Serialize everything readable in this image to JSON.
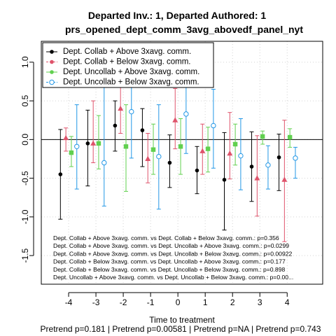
{
  "chart_data": {
    "type": "scatter",
    "title": "Departed Inv.: 1, Departed Authored: 1",
    "subtitle": "prs_opened_dept_comm_3avg_abovedf_panel_nyt",
    "xlabel": "Time to treatment",
    "xlabel2": "Pretrend p=0.181 | Pretrend p=0.00581 | Pretrend p=NA | Pretrend p=0.743",
    "ylabel": "",
    "xlim": [
      -5.0,
      5.3
    ],
    "ylim": [
      -1.87,
      1.27
    ],
    "x_ticks": [
      -4,
      -3,
      -2,
      -1,
      0,
      1,
      2,
      3,
      4
    ],
    "y_ticks": [
      -1.5,
      -1.0,
      -0.5,
      0.0,
      0.5,
      1.0
    ],
    "grid": true,
    "zero_line": 0,
    "legend_position": "top-left",
    "series": [
      {
        "name": "Dept. Collab + Above 3xavg. comm.",
        "color": "#000000",
        "marker": "dot",
        "offset": -0.3,
        "x": [
          -4,
          -3,
          -2,
          -1,
          0,
          1,
          2,
          3,
          4
        ],
        "y": [
          -0.45,
          -0.05,
          0.18,
          0.12,
          -0.3,
          -0.4,
          -0.52,
          -0.35,
          -0.23
        ],
        "lower": [
          -1.03,
          -0.6,
          -0.15,
          -0.35,
          -0.62,
          -0.7,
          -1.17,
          -0.8,
          -0.66
        ],
        "upper": [
          0.13,
          0.38,
          0.5,
          0.4,
          0.06,
          -0.09,
          0.09,
          0.1,
          0.07
        ]
      },
      {
        "name": "Dept. Collab + Below 3xavg. comm.",
        "color": "#DF536B",
        "marker": "triangle",
        "offset": -0.1,
        "x": [
          -4,
          -3,
          -2,
          -1,
          0,
          1,
          2,
          3,
          4
        ],
        "y": [
          0.02,
          -0.05,
          0.4,
          -0.25,
          0.25,
          -0.15,
          -0.18,
          -0.5,
          -0.52
        ],
        "lower": [
          -0.15,
          -0.3,
          0.08,
          -0.56,
          -0.12,
          -0.45,
          -0.51,
          -0.99,
          -1.32
        ],
        "upper": [
          0.15,
          0.5,
          1.13,
          0.08,
          0.66,
          0.2,
          0.35,
          0.05,
          0.25
        ]
      },
      {
        "name": "Dept. Uncollab + Above 3xavg. comm.",
        "color": "#61D04F",
        "marker": "square",
        "offset": 0.1,
        "x": [
          -4,
          -3,
          -2,
          -1,
          0,
          1,
          2,
          3,
          4
        ],
        "y": [
          -0.17,
          -0.05,
          -0.09,
          -0.13,
          -0.09,
          -0.12,
          -0.06,
          0.04,
          0.03
        ],
        "lower": [
          -0.35,
          -0.38,
          -0.67,
          -0.45,
          -0.45,
          -0.42,
          -0.33,
          -0.06,
          -0.1
        ],
        "upper": [
          0.04,
          0.31,
          0.45,
          0.2,
          0.27,
          0.16,
          0.2,
          0.11,
          0.14
        ]
      },
      {
        "name": "Dept. Uncollab + Below 3xavg. comm.",
        "color": "#2297E6",
        "marker": "circle",
        "offset": 0.3,
        "x": [
          -4,
          -3,
          -2,
          -1,
          0,
          1,
          2,
          3,
          4
        ],
        "y": [
          -0.09,
          -0.3,
          0.36,
          -0.22,
          0.33,
          0.18,
          -0.21,
          -0.33,
          -0.24
        ],
        "lower": [
          -0.64,
          -0.86,
          -0.24,
          -0.9,
          -0.18,
          -0.37,
          -0.65,
          -0.64,
          -0.5
        ],
        "upper": [
          0.45,
          0.7,
          0.95,
          0.45,
          0.85,
          0.65,
          0.27,
          -0.08,
          -0.1
        ]
      }
    ],
    "annotations": [
      "Dept. Collab + Above 3xavg. comm. vs Dept. Collab + Below 3xavg. comm.: p=0.356",
      "Dept. Collab + Above 3xavg. comm. vs Dept. Uncollab + Above 3xavg. comm.: p=0.0299",
      "Dept. Collab + Above 3xavg. comm. vs Dept. Uncollab + Below 3xavg. comm.: p=0.00922",
      "Dept. Collab + Below 3xavg. comm. vs Dept. Uncollab + Above 3xavg. comm.: p=0.177",
      "Dept. Collab + Below 3xavg. comm. vs Dept. Uncollab + Below 3xavg. comm.: p=0.898",
      "Dept. Uncollab + Above 3xavg. comm. vs Dept. Uncollab + Below 3xavg. comm.: p=0.00..."
    ]
  }
}
